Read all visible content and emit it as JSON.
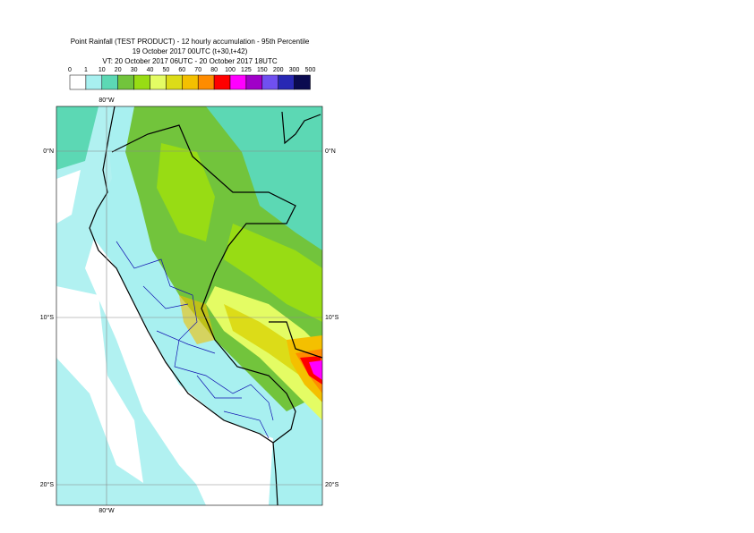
{
  "header": {
    "title": "Point Rainfall (TEST PRODUCT) - 12 hourly accumulation - 95th Percentile",
    "run": "19 October 2017 00UTC (t+30,t+42)",
    "valid": "VT: 20 October 2017 06UTC - 20 October 2017 18UTC"
  },
  "legend": {
    "labels": [
      "0",
      "1",
      "10",
      "20",
      "30",
      "40",
      "50",
      "60",
      "70",
      "80",
      "100",
      "125",
      "150",
      "200",
      "300",
      "500"
    ],
    "colors": [
      "#ffffff",
      "#a8f0f0",
      "#5cd8b4",
      "#72c43c",
      "#98dc14",
      "#e4fc64",
      "#dcdc18",
      "#f4c000",
      "#ff8c00",
      "#ff0000",
      "#ff00ff",
      "#a000c8",
      "#7050f0",
      "#2828b4",
      "#0a0a50"
    ]
  },
  "map": {
    "lon_labels": [
      "80°W"
    ],
    "lat_labels": [
      "0°N",
      "10°S",
      "20°S"
    ]
  }
}
